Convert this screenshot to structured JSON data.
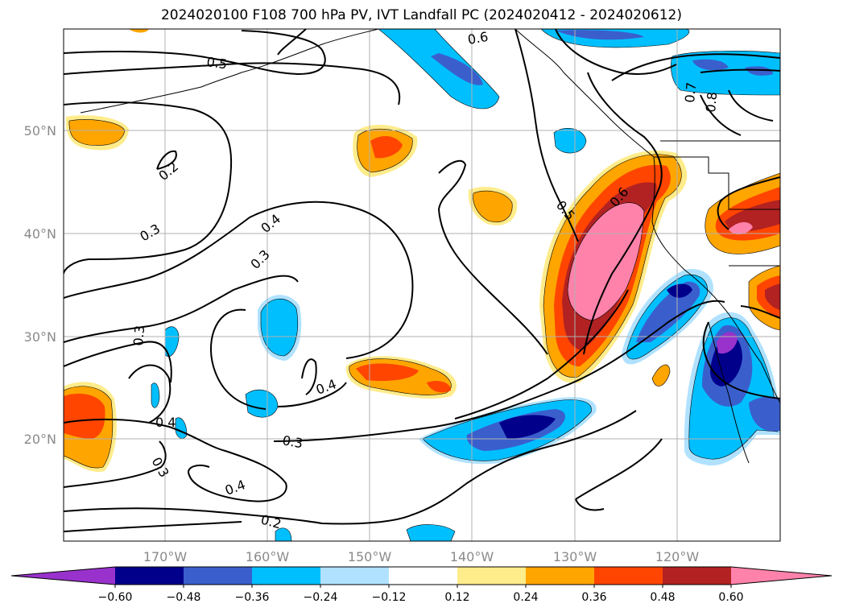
{
  "title": "2024020100 F108 700 hPa PV, IVT Landfall PC (2024020412 - 2024020612)",
  "map": {
    "lon_ticks": [
      "170°W",
      "160°W",
      "150°W",
      "140°W",
      "130°W",
      "120°W"
    ],
    "lat_ticks": [
      "50°N",
      "40°N",
      "30°N",
      "20°N"
    ],
    "contour_labels": [
      "0.5",
      "0.6",
      "0.2",
      "0.3",
      "0.4",
      "0.3",
      "0.3",
      "0.4",
      "0.3",
      "0.4",
      "0.3",
      "0.4",
      "0.2",
      "0.5",
      "0.6",
      "0.7",
      "0.8"
    ]
  },
  "colorbar": {
    "colors": [
      "#9932CC",
      "#00008B",
      "#3A5FCD",
      "#00BFFF",
      "#B0E2FF",
      "#FFFFFF",
      "#FFEC8B",
      "#FFA500",
      "#FF4500",
      "#B22222",
      "#FF82AB"
    ],
    "tick_labels": [
      "−0.60",
      "−0.48",
      "−0.36",
      "−0.24",
      "−0.12",
      "0.12",
      "0.24",
      "0.36",
      "0.48",
      "0.60"
    ]
  }
}
